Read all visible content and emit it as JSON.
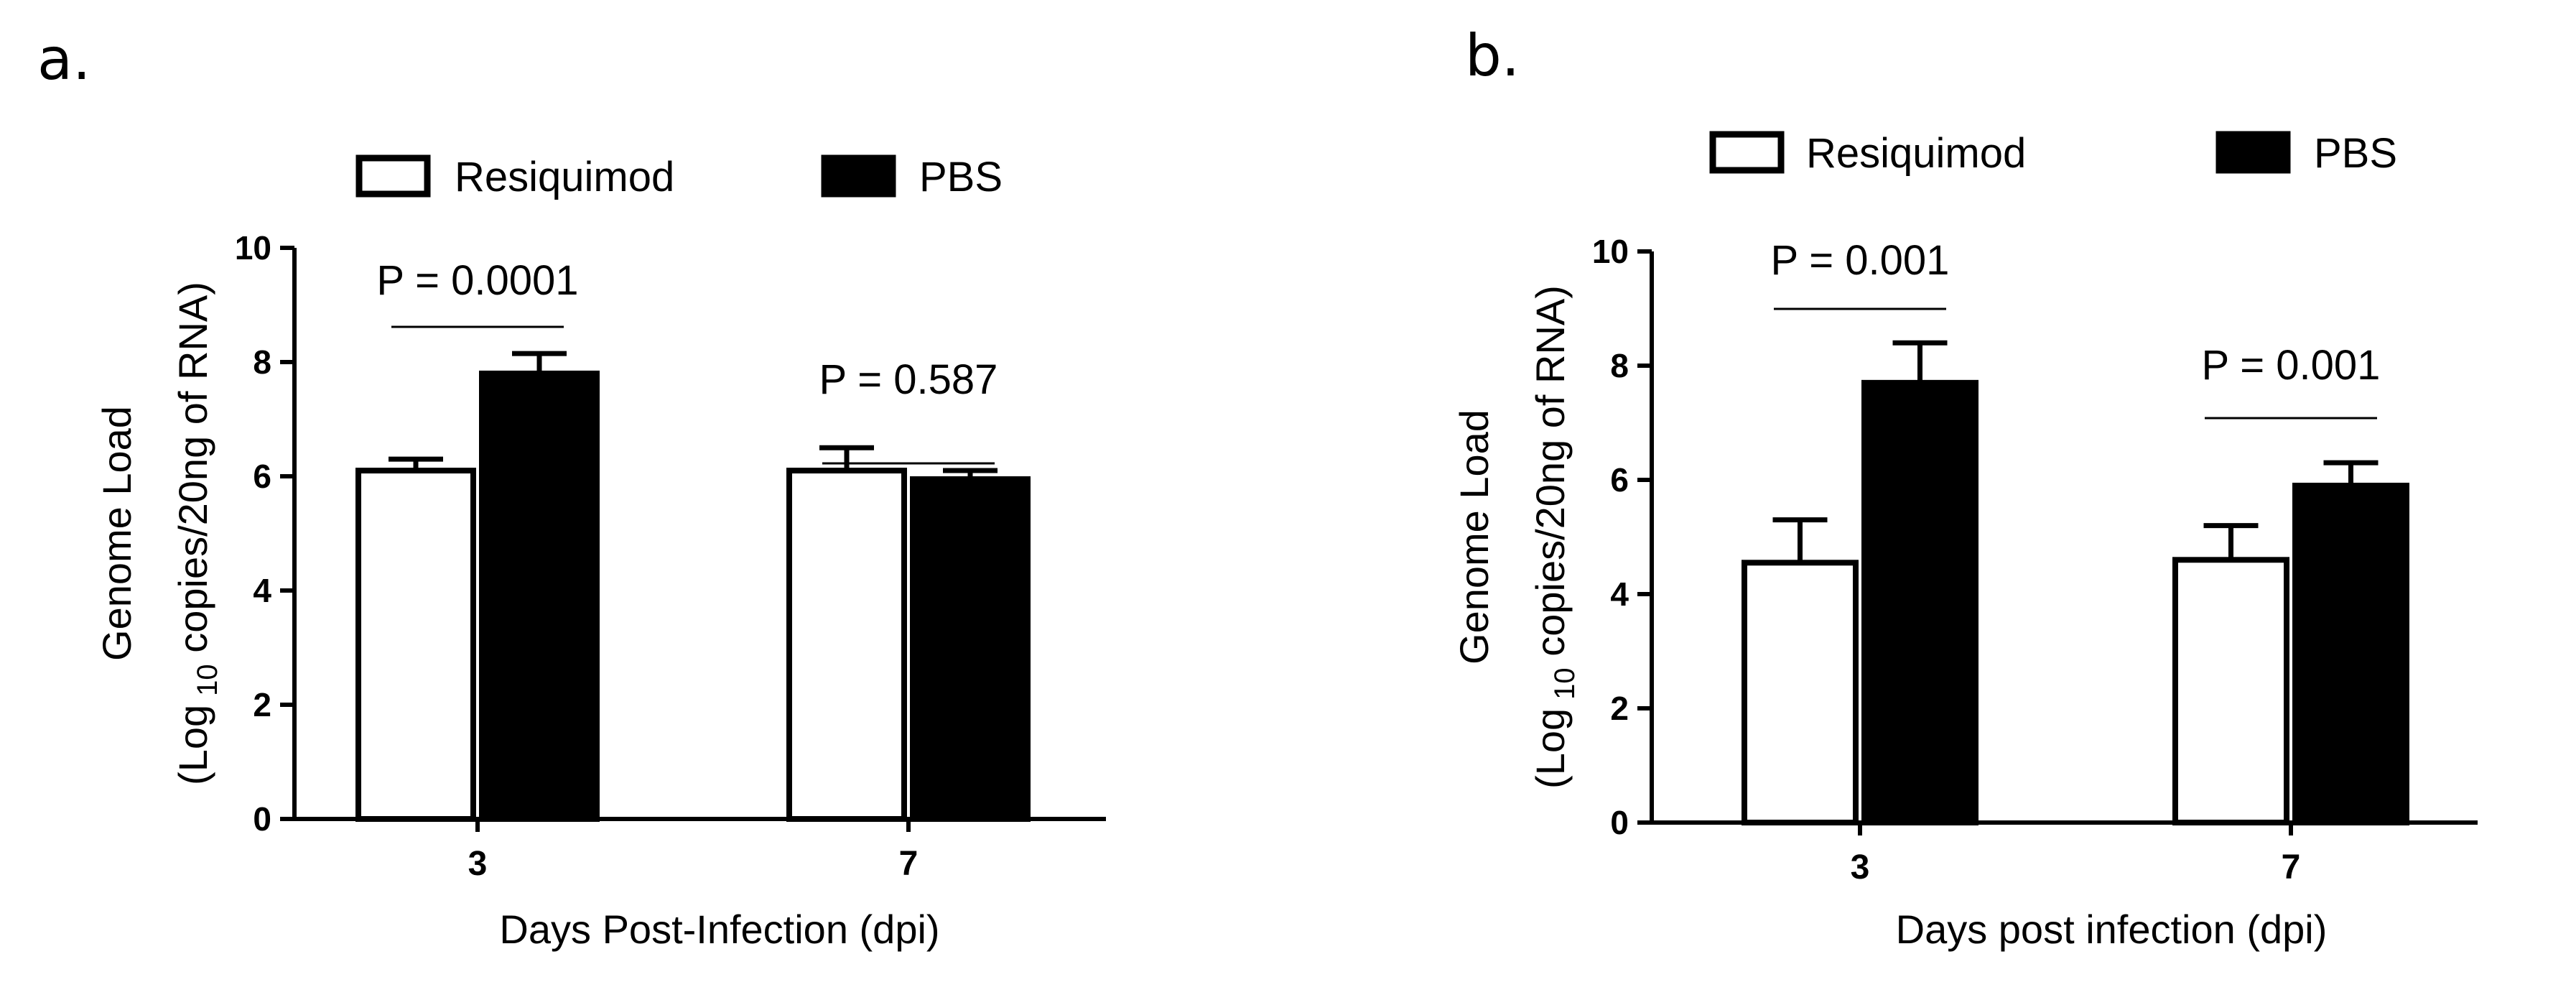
{
  "chart_data": [
    {
      "type": "bar",
      "panel": "a.",
      "categories": [
        "3",
        "7"
      ],
      "series": [
        {
          "name": "Resiquimod",
          "values": [
            6.1,
            6.1
          ],
          "errors": [
            0.2,
            0.4
          ],
          "color": "#ffffff"
        },
        {
          "name": "PBS",
          "values": [
            7.8,
            5.95
          ],
          "errors": [
            0.35,
            0.15
          ],
          "color": "#000000"
        }
      ],
      "ylim": [
        0,
        10
      ],
      "yticks": [
        "0",
        "2",
        "4",
        "6",
        "8",
        "10"
      ],
      "xlabel": "Days Post-Infection (dpi)",
      "ylabel_line1": "Genome Load",
      "ylabel_line2": {
        "pre": "(Log",
        "sub": "10",
        "post": " copies/20ng of RNA)"
      },
      "annotations": [
        {
          "text": "P = 0.0001",
          "category": "3"
        },
        {
          "text": "P = 0.587",
          "category": "7"
        }
      ],
      "legend": "top"
    },
    {
      "type": "bar",
      "panel": "b.",
      "categories": [
        "3",
        "7"
      ],
      "series": [
        {
          "name": "Resiquimod",
          "values": [
            4.55,
            4.6
          ],
          "errors": [
            0.75,
            0.6
          ],
          "color": "#ffffff"
        },
        {
          "name": "PBS",
          "values": [
            7.7,
            5.9
          ],
          "errors": [
            0.7,
            0.4
          ],
          "color": "#000000"
        }
      ],
      "ylim": [
        0,
        10
      ],
      "yticks": [
        "0",
        "2",
        "4",
        "6",
        "8",
        "10"
      ],
      "xlabel": "Days post infection (dpi)",
      "ylabel_line1": "Genome Load",
      "ylabel_line2": {
        "pre": "(Log",
        "sub": "10",
        "post": " copies/20ng of RNA)"
      },
      "annotations": [
        {
          "text": "P = 0.001",
          "category": "3"
        },
        {
          "text": "P = 0.001",
          "category": "7"
        }
      ],
      "legend": "top"
    }
  ]
}
